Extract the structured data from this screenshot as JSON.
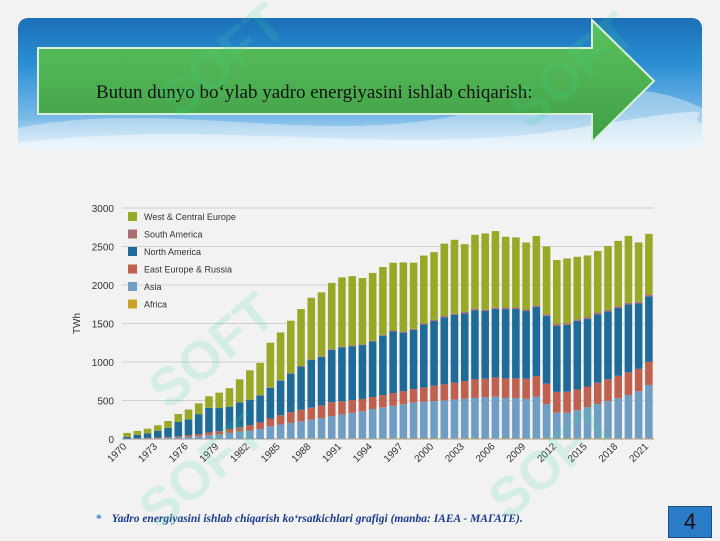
{
  "title": "Butun dunyo bo‘ylab yadro energiyasini ishlab chiqarish:",
  "footnote": {
    "bullet": "*",
    "text": "Yadro energiyasini ishlab chiqarish ko‘rsatkichlari grafigi (manba: IAEA - МАГАТЕ)."
  },
  "page_number": "4",
  "watermark_text": "SOFT",
  "colors": {
    "arrow": "#4caf50",
    "banner": "#2b8fd3",
    "page_badge": "#2a7cc7"
  },
  "chart_data": {
    "type": "bar",
    "stacked": true,
    "ylabel": "TWh",
    "xlabel": "",
    "ylim": [
      0,
      3000
    ],
    "yticks": [
      0,
      500,
      1000,
      1500,
      2000,
      2500,
      3000
    ],
    "x": [
      1970,
      1971,
      1972,
      1973,
      1974,
      1975,
      1976,
      1977,
      1978,
      1979,
      1980,
      1981,
      1982,
      1983,
      1984,
      1985,
      1986,
      1987,
      1988,
      1989,
      1990,
      1991,
      1992,
      1993,
      1994,
      1995,
      1996,
      1997,
      1998,
      1999,
      2000,
      2001,
      2002,
      2003,
      2004,
      2005,
      2006,
      2007,
      2008,
      2009,
      2010,
      2011,
      2012,
      2013,
      2014,
      2015,
      2016,
      2017,
      2018,
      2019,
      2020,
      2021
    ],
    "xtick_labels": [
      "1970",
      "1973",
      "1976",
      "1979",
      "1982",
      "1985",
      "1988",
      "1991",
      "1994",
      "1997",
      "2000",
      "2003",
      "2006",
      "2009",
      "2012",
      "2015",
      "2018",
      "2021"
    ],
    "grid": true,
    "legend_position": "top-left",
    "series": [
      {
        "name": "Africa",
        "color": "#c9a227",
        "values": [
          0,
          0,
          0,
          0,
          0,
          0,
          0,
          0,
          0,
          0,
          0,
          0,
          0,
          0,
          6,
          8,
          9,
          10,
          11,
          11,
          8,
          9,
          10,
          10,
          10,
          11,
          12,
          12,
          13,
          13,
          13,
          11,
          12,
          13,
          14,
          12,
          10,
          12,
          13,
          12,
          12,
          14,
          12,
          13,
          14,
          12,
          15,
          15,
          11,
          11,
          11,
          12
        ]
      },
      {
        "name": "Asia",
        "color": "#6f9dc4",
        "values": [
          2,
          4,
          8,
          10,
          14,
          20,
          28,
          35,
          50,
          60,
          80,
          95,
          110,
          130,
          160,
          180,
          200,
          220,
          240,
          260,
          290,
          310,
          330,
          350,
          380,
          400,
          420,
          440,
          460,
          470,
          480,
          490,
          500,
          510,
          520,
          530,
          540,
          520,
          520,
          510,
          540,
          440,
          330,
          330,
          360,
          400,
          440,
          480,
          520,
          560,
          610,
          690
        ]
      },
      {
        "name": "East Europe & Russia",
        "color": "#c0604e",
        "values": [
          2,
          4,
          6,
          8,
          10,
          15,
          20,
          28,
          35,
          42,
          50,
          60,
          70,
          85,
          100,
          120,
          140,
          150,
          155,
          165,
          180,
          170,
          165,
          160,
          155,
          160,
          165,
          170,
          175,
          185,
          200,
          210,
          220,
          230,
          240,
          240,
          250,
          255,
          255,
          260,
          265,
          265,
          270,
          270,
          270,
          270,
          275,
          280,
          290,
          295,
          290,
          300
        ]
      },
      {
        "name": "North America",
        "color": "#1e6b98",
        "values": [
          25,
          45,
          60,
          90,
          120,
          190,
          205,
          260,
          320,
          300,
          290,
          320,
          330,
          350,
          400,
          450,
          500,
          560,
          620,
          630,
          680,
          700,
          700,
          700,
          720,
          770,
          800,
          760,
          770,
          820,
          840,
          870,
          880,
          880,
          900,
          880,
          890,
          900,
          900,
          880,
          900,
          880,
          860,
          870,
          890,
          880,
          890,
          880,
          880,
          880,
          850,
          850
        ]
      },
      {
        "name": "South America",
        "color": "#a86e73",
        "values": [
          0,
          0,
          0,
          0,
          0,
          0,
          0,
          0,
          0,
          0,
          0,
          0,
          2,
          3,
          5,
          6,
          7,
          8,
          8,
          9,
          10,
          10,
          10,
          10,
          12,
          12,
          12,
          12,
          12,
          14,
          14,
          16,
          16,
          18,
          18,
          18,
          20,
          20,
          20,
          20,
          20,
          22,
          22,
          22,
          22,
          22,
          22,
          22,
          22,
          22,
          22,
          22
        ]
      },
      {
        "name": "West & Central Europe",
        "color": "#9aa828",
        "values": [
          50,
          52,
          60,
          70,
          90,
          100,
          130,
          140,
          150,
          200,
          240,
          300,
          380,
          420,
          580,
          620,
          680,
          740,
          800,
          830,
          860,
          900,
          900,
          860,
          880,
          880,
          880,
          900,
          860,
          880,
          880,
          940,
          960,
          880,
          960,
          990,
          990,
          920,
          910,
          870,
          900,
          880,
          830,
          840,
          810,
          800,
          800,
          830,
          850,
          870,
          770,
          790
        ]
      }
    ]
  }
}
